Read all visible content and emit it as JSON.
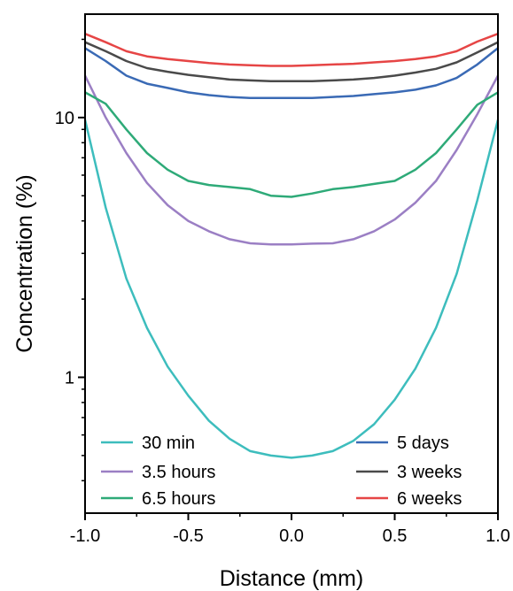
{
  "chart_data": {
    "type": "line",
    "title": "",
    "xlabel": "Distance (mm)",
    "ylabel": "Concentration (%)",
    "xlim": [
      -1.0,
      1.0
    ],
    "ylim": [
      0.3,
      25
    ],
    "y_scale": "log",
    "grid": false,
    "legend_placement": "bottom (two columns)",
    "x_ticks": [
      "-1.0",
      "-0.5",
      "0.0",
      "0.5",
      "1.0"
    ],
    "x_tick_values": [
      -1.0,
      -0.5,
      0.0,
      0.5,
      1.0
    ],
    "y_ticks": [
      "1",
      "10"
    ],
    "y_tick_values": [
      1,
      10
    ],
    "x": [
      -1.0,
      -0.9,
      -0.8,
      -0.7,
      -0.6,
      -0.5,
      -0.4,
      -0.3,
      -0.2,
      -0.1,
      0.0,
      0.1,
      0.2,
      0.3,
      0.4,
      0.5,
      0.6,
      0.7,
      0.8,
      0.9,
      1.0
    ],
    "series": [
      {
        "name": "30 min",
        "color": "#3dbdbd",
        "values": [
          9.8,
          4.5,
          2.4,
          1.55,
          1.1,
          0.85,
          0.68,
          0.58,
          0.52,
          0.5,
          0.49,
          0.5,
          0.52,
          0.57,
          0.66,
          0.82,
          1.08,
          1.55,
          2.5,
          4.8,
          9.8
        ]
      },
      {
        "name": "3.5 hours",
        "color": "#9b7fc4",
        "values": [
          14.5,
          10.0,
          7.3,
          5.6,
          4.6,
          4.0,
          3.65,
          3.4,
          3.28,
          3.25,
          3.25,
          3.27,
          3.28,
          3.4,
          3.65,
          4.05,
          4.7,
          5.7,
          7.5,
          10.3,
          14.5
        ]
      },
      {
        "name": "6.5 hours",
        "color": "#2eaa78",
        "values": [
          12.5,
          11.3,
          9.0,
          7.3,
          6.3,
          5.7,
          5.5,
          5.4,
          5.3,
          5.0,
          4.95,
          5.1,
          5.3,
          5.4,
          5.55,
          5.7,
          6.3,
          7.3,
          9.0,
          11.2,
          12.5
        ]
      },
      {
        "name": "5 days",
        "color": "#3a6ab5",
        "values": [
          18.5,
          16.5,
          14.5,
          13.5,
          13.0,
          12.5,
          12.2,
          12.0,
          11.9,
          11.9,
          11.9,
          11.9,
          12.0,
          12.1,
          12.3,
          12.5,
          12.8,
          13.3,
          14.2,
          16.0,
          18.5
        ]
      },
      {
        "name": "3 weeks",
        "color": "#4a4a4a",
        "values": [
          19.5,
          18.0,
          16.5,
          15.5,
          15.0,
          14.6,
          14.3,
          14.0,
          13.9,
          13.8,
          13.8,
          13.8,
          13.9,
          14.0,
          14.2,
          14.5,
          14.9,
          15.4,
          16.3,
          17.8,
          19.5
        ]
      },
      {
        "name": "6 weeks",
        "color": "#e64545",
        "values": [
          21.0,
          19.5,
          18.0,
          17.2,
          16.8,
          16.5,
          16.2,
          16.0,
          15.9,
          15.8,
          15.8,
          15.9,
          16.0,
          16.1,
          16.3,
          16.5,
          16.8,
          17.2,
          18.0,
          19.6,
          21.0
        ]
      }
    ]
  }
}
